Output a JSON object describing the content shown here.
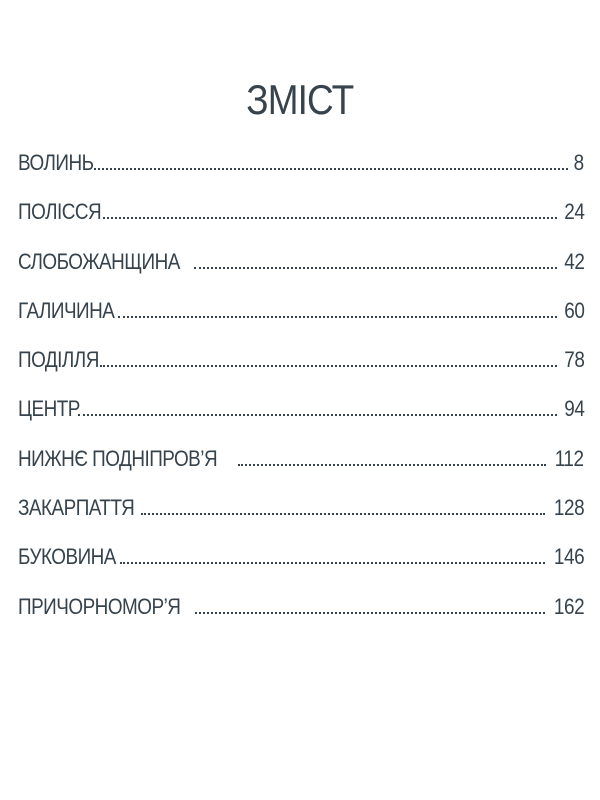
{
  "title": "ЗМІСТ",
  "colors": {
    "text": "#36434d"
  },
  "entries": [
    {
      "label": "ВОЛИНЬ",
      "page": "8"
    },
    {
      "label": "ПОЛІССЯ",
      "page": "24"
    },
    {
      "label": "СЛОБОЖАНЩИНА",
      "page": "42"
    },
    {
      "label": "ГАЛИЧИНА",
      "page": "60"
    },
    {
      "label": "ПОДІЛЛЯ",
      "page": "78"
    },
    {
      "label": "ЦЕНТР",
      "page": "94"
    },
    {
      "label": "НИЖНЄ ПОДНІПРОВ’Я",
      "page": "112"
    },
    {
      "label": "ЗАКАРПАТТЯ",
      "page": "128"
    },
    {
      "label": "БУКОВИНА",
      "page": "146"
    },
    {
      "label": "ПРИЧОРНОМОР’Я",
      "page": "162"
    }
  ]
}
